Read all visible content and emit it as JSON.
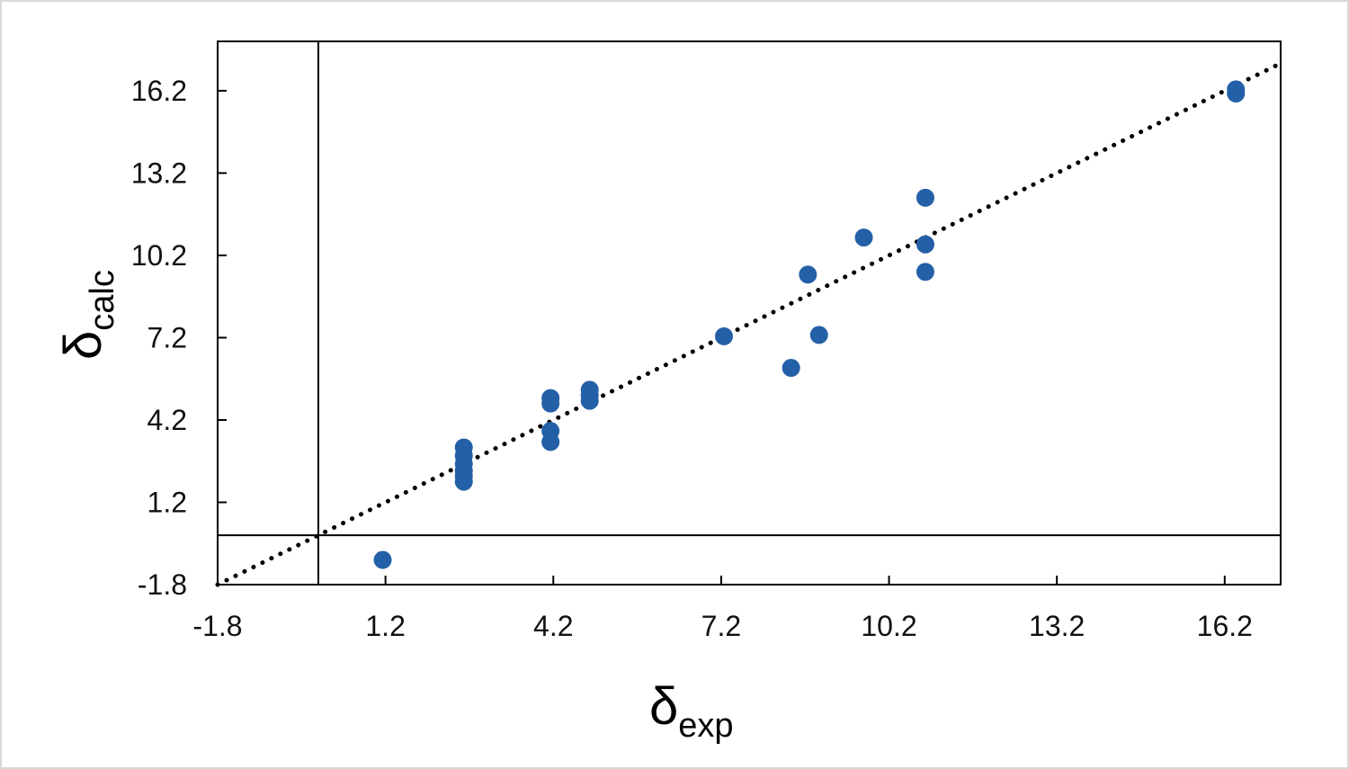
{
  "chart_data": {
    "type": "scatter",
    "title": "",
    "xlabel": "δ",
    "xlabel_sub": "exp",
    "ylabel": "δ",
    "ylabel_sub": "calc",
    "xlim": [
      -1.8,
      17.2
    ],
    "ylim": [
      -1.8,
      18.0
    ],
    "xticks": [
      -1.8,
      1.2,
      4.2,
      7.2,
      10.2,
      13.2,
      16.2
    ],
    "yticks": [
      -1.8,
      1.2,
      4.2,
      7.2,
      10.2,
      13.2,
      16.2
    ],
    "xtick_labels": [
      "-1.8",
      "1.2",
      "4.2",
      "7.2",
      "10.2",
      "13.2",
      "16.2"
    ],
    "ytick_labels": [
      "-1.8",
      "1.2",
      "4.2",
      "7.2",
      "10.2",
      "13.2",
      "16.2"
    ],
    "grid": false,
    "reference_lines": {
      "x": 0,
      "y": 0
    },
    "fit_line": {
      "style": "dotted",
      "slope": 1.0,
      "intercept": 0.0
    },
    "marker_color": "#2460a7",
    "series": [
      {
        "x": [
          1.15,
          2.6,
          2.6,
          2.6,
          2.6,
          2.6,
          2.6,
          4.15,
          4.15,
          4.15,
          4.15,
          4.85,
          4.85,
          4.85,
          7.25,
          8.45,
          8.75,
          8.95,
          9.75,
          10.85,
          10.85,
          10.85,
          16.4,
          16.4
        ],
        "y": [
          -0.9,
          3.2,
          2.9,
          2.6,
          2.35,
          2.15,
          1.95,
          5.0,
          4.8,
          3.8,
          3.4,
          5.3,
          5.1,
          4.9,
          7.25,
          6.1,
          9.5,
          7.3,
          10.85,
          12.3,
          10.6,
          9.6,
          16.1,
          16.25
        ]
      }
    ]
  }
}
